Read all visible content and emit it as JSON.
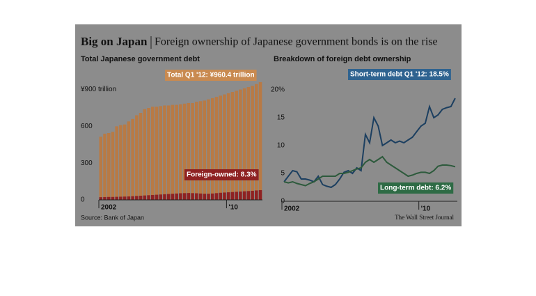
{
  "title": "Big on Japan",
  "subtitle": "Foreign ownership of Japanese government bonds is on the rise",
  "source": "Source: Bank of Japan",
  "credit": "The Wall Street Journal",
  "chart_data": [
    {
      "type": "bar",
      "title": "Total Japanese government debt",
      "categories": [
        "2002",
        null,
        null,
        null,
        null,
        null,
        null,
        null,
        null,
        null,
        null,
        null,
        null,
        null,
        null,
        null,
        null,
        null,
        null,
        null,
        null,
        null,
        null,
        null,
        null,
        null,
        null,
        null,
        null,
        null,
        null,
        null,
        "'10",
        null,
        null,
        null,
        null,
        null,
        null,
        null,
        null
      ],
      "series": [
        {
          "color": "#b87a45",
          "values": [
            515,
            540,
            545,
            555,
            600,
            610,
            615,
            640,
            660,
            690,
            710,
            740,
            750,
            760,
            760,
            765,
            770,
            770,
            775,
            775,
            780,
            785,
            790,
            790,
            800,
            805,
            810,
            820,
            830,
            840,
            850,
            860,
            870,
            880,
            890,
            900,
            910,
            920,
            930,
            945,
            960.4
          ]
        },
        {
          "color": "#8e2222",
          "values": [
            22,
            23,
            24,
            24,
            25,
            26,
            27,
            28,
            30,
            32,
            34,
            36,
            38,
            40,
            42,
            44,
            46,
            48,
            50,
            52,
            54,
            55,
            56,
            55,
            54,
            52,
            50,
            50,
            52,
            55,
            58,
            60,
            62,
            64,
            66,
            68,
            70,
            72,
            74,
            77,
            79.7
          ]
        }
      ],
      "annotations": [
        {
          "text": "Total Q1 '12: ¥960.4 trillion",
          "color": "#c98a50"
        },
        {
          "text": "Foreign-owned: 8.3%",
          "color": "#8e2222"
        }
      ],
      "ylim": [
        0,
        960
      ],
      "yticks": [
        0,
        300,
        600,
        {
          "value": 900,
          "label": "¥900 trillion"
        }
      ],
      "grid": false
    },
    {
      "type": "line",
      "title": "Breakdown of foreign debt ownership",
      "categories": [
        "2002",
        null,
        null,
        null,
        null,
        null,
        null,
        null,
        null,
        null,
        null,
        null,
        null,
        null,
        null,
        null,
        null,
        null,
        null,
        null,
        null,
        null,
        null,
        null,
        null,
        null,
        null,
        null,
        null,
        null,
        null,
        null,
        "'10",
        null,
        null,
        null,
        null,
        null,
        null,
        null,
        null
      ],
      "series": [
        {
          "color": "#1c3f60",
          "values": [
            3.5,
            4.5,
            5.5,
            5.3,
            4,
            4,
            3.8,
            3.5,
            4.5,
            3,
            2.7,
            2.5,
            3,
            4,
            5.2,
            5.5,
            5,
            6,
            5.5,
            12,
            10.5,
            15,
            13.5,
            10,
            10.5,
            11,
            10.5,
            10.8,
            10.5,
            11,
            11.5,
            12.5,
            13.5,
            14,
            17,
            15,
            15.5,
            16.5,
            16.8,
            17,
            18.5
          ]
        },
        {
          "color": "#2d5a3c",
          "values": [
            3.5,
            3.3,
            3.5,
            3.2,
            3,
            2.8,
            3.2,
            3.5,
            4,
            4.5,
            4.5,
            4.5,
            4.5,
            5,
            5,
            5.2,
            5.5,
            5.8,
            6,
            7,
            7.5,
            7,
            7.5,
            8,
            7,
            6.5,
            6,
            5.5,
            5,
            4.5,
            4.7,
            5,
            5.2,
            5.2,
            5,
            5.5,
            6.3,
            6.5,
            6.5,
            6.4,
            6.2
          ]
        }
      ],
      "annotations": [
        {
          "text": "Short-term debt Q1 '12: 18.5%",
          "color": "#2f6390"
        },
        {
          "text": "Long-term debt: 6.2%",
          "color": "#2e6b45"
        }
      ],
      "ylim": [
        0,
        21
      ],
      "yticks": [
        0,
        5,
        10,
        15,
        {
          "value": 20,
          "label": "20%"
        }
      ],
      "grid": false
    }
  ]
}
